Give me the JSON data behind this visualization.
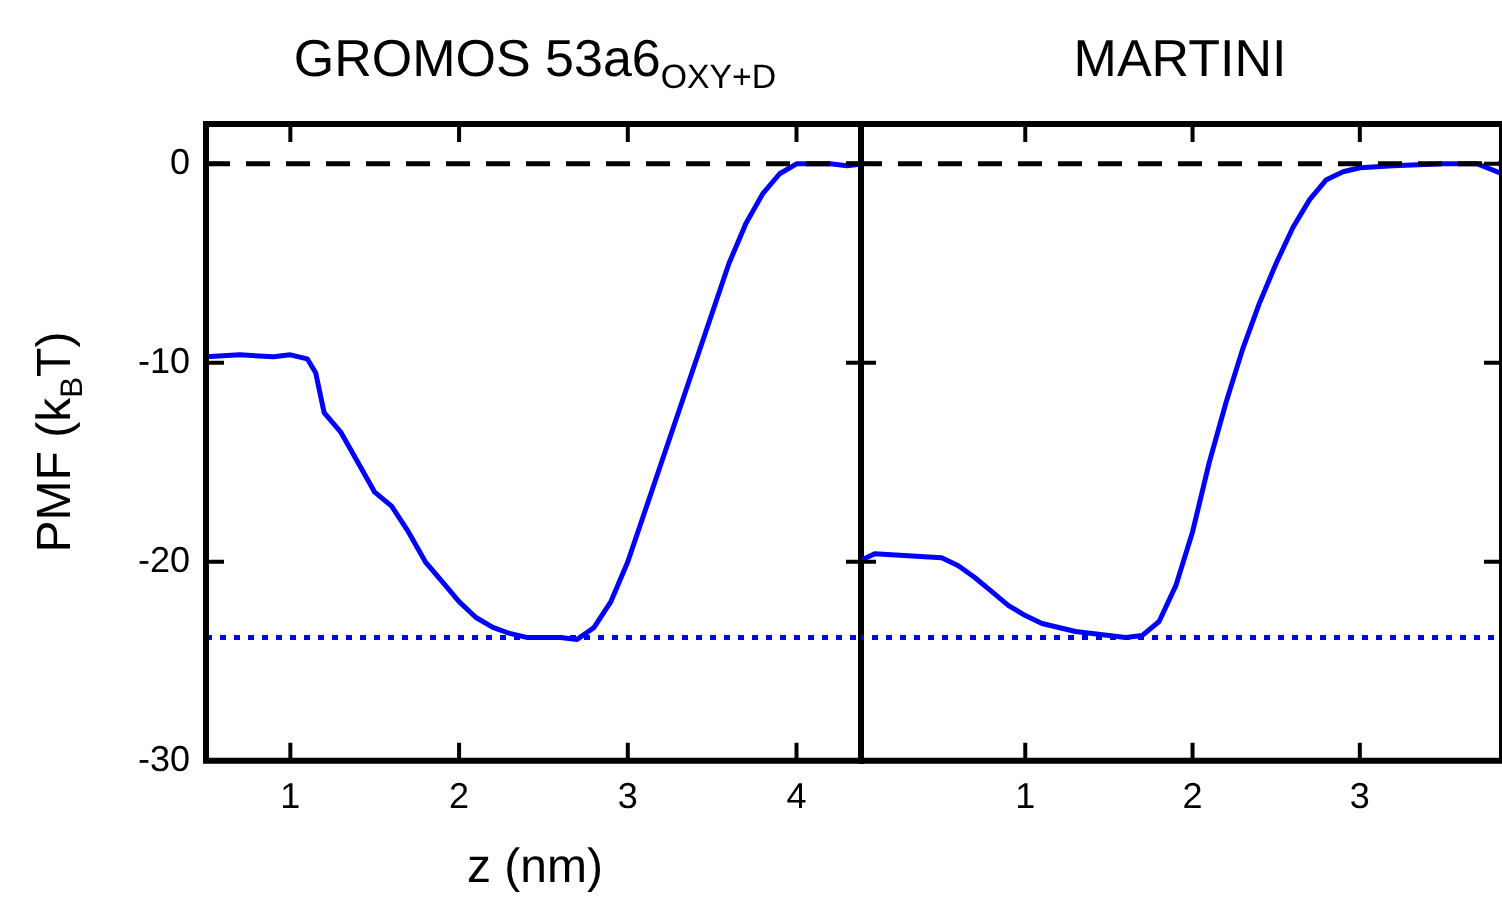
{
  "chart_data": [
    {
      "type": "line",
      "title": "GROMOS 53a6$_{OXY+D}$",
      "xlabel": "z (nm)",
      "ylabel": "PMF (k$_{B}$T)",
      "xlim": [
        0.5,
        4.4
      ],
      "xticks": [
        1,
        2,
        3,
        4
      ],
      "ylim": [
        -30,
        2
      ],
      "yticks": [
        -30,
        -20,
        -10,
        0
      ],
      "grid": false,
      "legend": false,
      "series": [
        {
          "color": "#0000ff",
          "x": [
            0.5,
            0.7,
            0.9,
            1.0,
            1.1,
            1.15,
            1.2,
            1.3,
            1.4,
            1.5,
            1.6,
            1.7,
            1.8,
            1.9,
            2.0,
            2.1,
            2.2,
            2.3,
            2.4,
            2.5,
            2.6,
            2.7,
            2.8,
            2.9,
            3.0,
            3.1,
            3.2,
            3.3,
            3.4,
            3.5,
            3.6,
            3.7,
            3.8,
            3.9,
            4.0,
            4.1,
            4.2,
            4.3,
            4.4
          ],
          "values": [
            -9.7,
            -9.6,
            -9.7,
            -9.6,
            -9.8,
            -10.5,
            -12.5,
            -13.5,
            -15,
            -16.5,
            -17.2,
            -18.5,
            -20,
            -21,
            -22,
            -22.8,
            -23.3,
            -23.6,
            -23.8,
            -23.8,
            -23.8,
            -23.9,
            -23.3,
            -22,
            -20,
            -17.5,
            -15,
            -12.5,
            -10,
            -7.5,
            -5,
            -3,
            -1.5,
            -0.5,
            0,
            0,
            0,
            -0.1,
            0
          ]
        }
      ],
      "ref_lines": [
        {
          "axis": "y",
          "value": 0,
          "color": "#000000",
          "line_style": "dashed"
        },
        {
          "axis": "y",
          "value": -23.8,
          "color": "#0000ff",
          "line_style": "dotted"
        }
      ]
    },
    {
      "type": "line",
      "title": "MARTINI",
      "xlim": [
        0,
        3.85
      ],
      "xticks": [
        1,
        2,
        3
      ],
      "ylim": [
        -30,
        2
      ],
      "yticks": [
        -30,
        -20,
        -10,
        0
      ],
      "grid": false,
      "legend": false,
      "tick_labels": "x",
      "series": [
        {
          "color": "#0000ff",
          "x": [
            0,
            0.1,
            0.3,
            0.5,
            0.6,
            0.7,
            0.8,
            0.9,
            1.0,
            1.1,
            1.2,
            1.3,
            1.4,
            1.5,
            1.6,
            1.7,
            1.8,
            1.9,
            2.0,
            2.1,
            2.2,
            2.3,
            2.4,
            2.5,
            2.6,
            2.7,
            2.8,
            2.9,
            3.0,
            3.2,
            3.5,
            3.7,
            3.85
          ],
          "values": [
            -20,
            -19.6,
            -19.7,
            -19.8,
            -20.2,
            -20.8,
            -21.5,
            -22.2,
            -22.7,
            -23.1,
            -23.3,
            -23.5,
            -23.6,
            -23.7,
            -23.8,
            -23.7,
            -23,
            -21.2,
            -18.5,
            -15,
            -12,
            -9.3,
            -7,
            -5,
            -3.2,
            -1.8,
            -0.8,
            -0.4,
            -0.2,
            -0.1,
            0,
            0,
            -0.5
          ]
        }
      ],
      "ref_lines": [
        {
          "axis": "y",
          "value": 0,
          "color": "#000000",
          "line_style": "dashed"
        },
        {
          "axis": "y",
          "value": -23.8,
          "color": "#0000ff",
          "line_style": "dotted"
        }
      ]
    }
  ]
}
